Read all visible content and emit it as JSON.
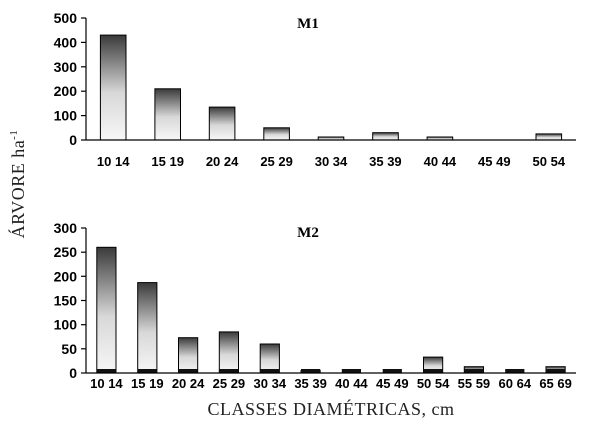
{
  "xlabel": "CLASSES DIAMÉTRICAS, cm",
  "ylabel_main": "ÁRVORE ha",
  "ylabel_sup": "-1",
  "chart_data": [
    {
      "type": "bar",
      "title": "M1",
      "categories": [
        "10 14",
        "15 19",
        "20 24",
        "25 29",
        "30 34",
        "35 39",
        "40 44",
        "45 49",
        "50 54"
      ],
      "values": [
        430,
        210,
        135,
        50,
        10,
        30,
        10,
        0,
        25
      ],
      "ylim": [
        0,
        500
      ],
      "yticks": [
        "0",
        "100",
        "200",
        "300",
        "400",
        "500"
      ],
      "grid": false
    },
    {
      "type": "bar",
      "title": "M2",
      "categories": [
        "10 14",
        "15 19",
        "20 24",
        "25 29",
        "30 34",
        "35 39",
        "40 44",
        "45 49",
        "50 54",
        "55 59",
        "60 64",
        "65 69"
      ],
      "values": [
        260,
        187,
        73,
        85,
        60,
        5,
        0,
        0,
        33,
        13,
        0,
        13
      ],
      "ylim": [
        0,
        300
      ],
      "yticks": [
        "0",
        "50",
        "100",
        "150",
        "200",
        "250",
        "300"
      ],
      "grid": false
    }
  ]
}
